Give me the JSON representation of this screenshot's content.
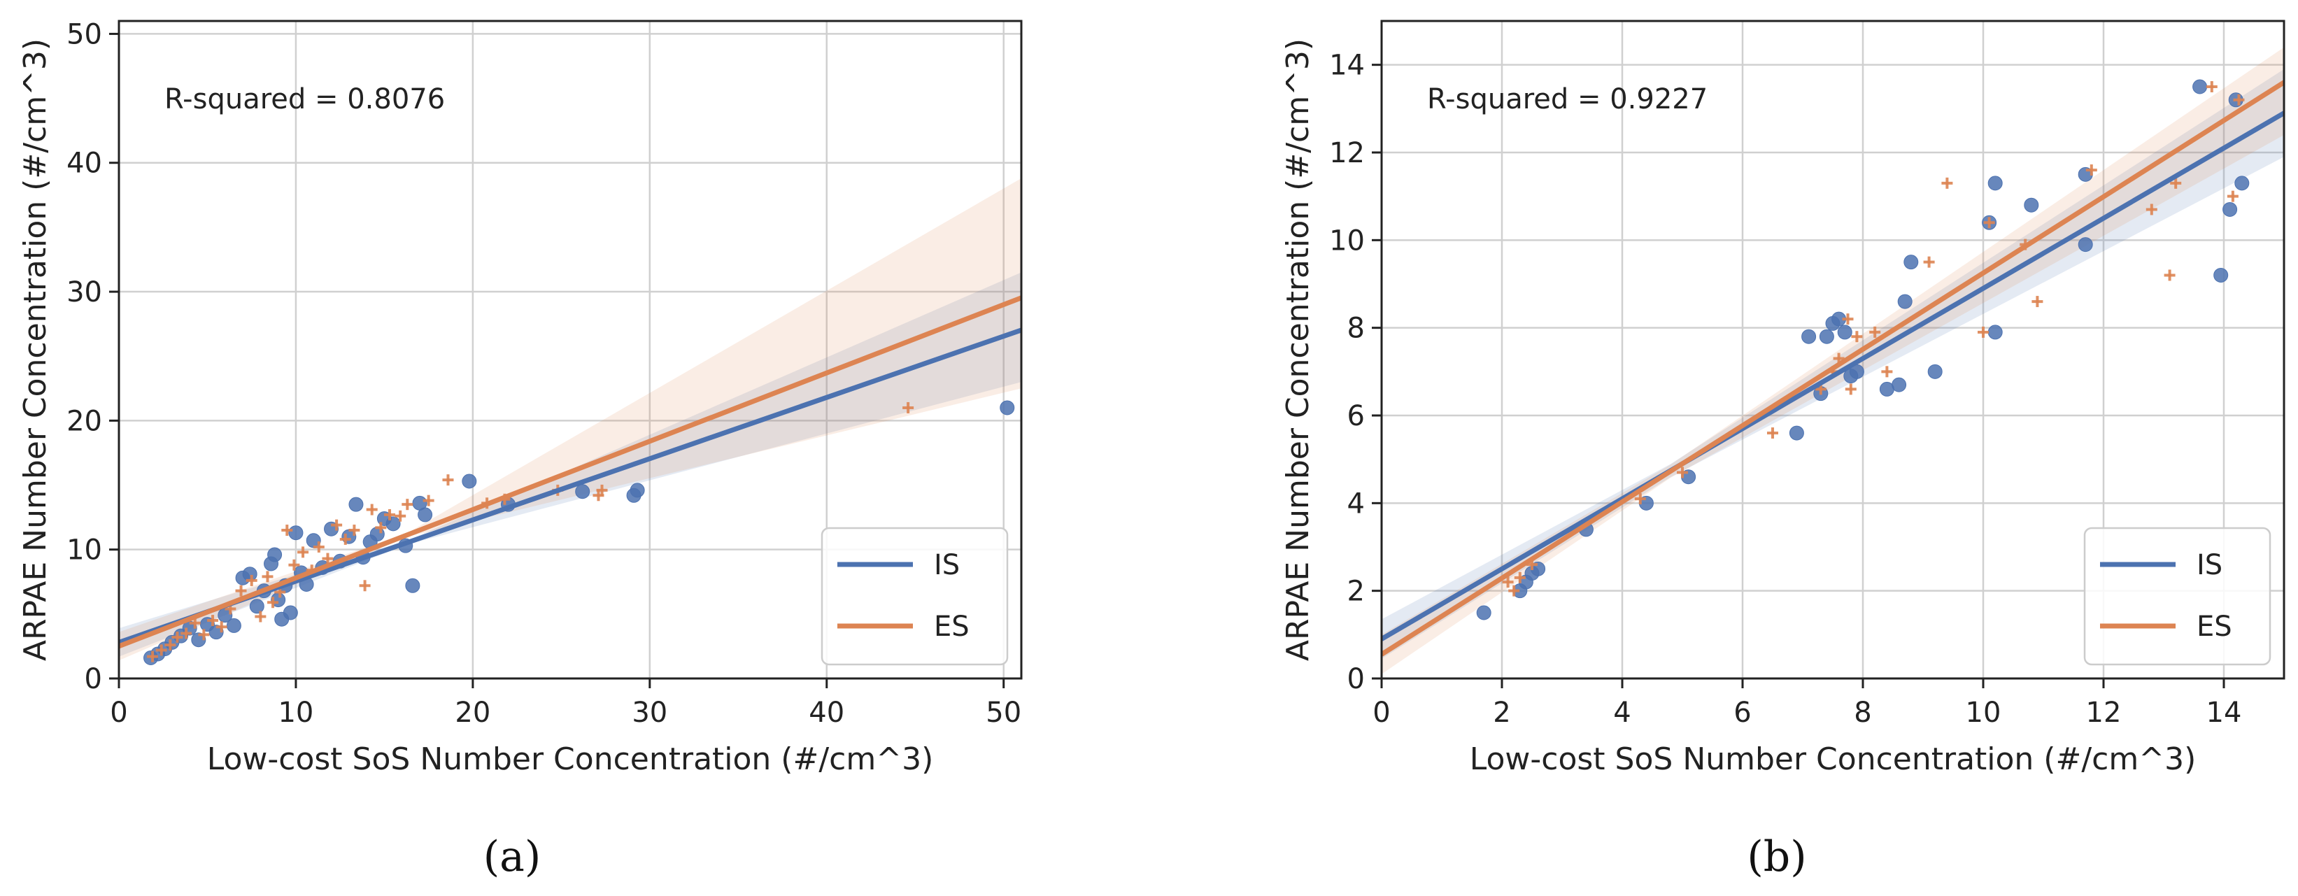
{
  "chart_data": [
    {
      "type": "scatter",
      "panel_label": "(a)",
      "annotation": "R-squared = 0.8076",
      "xlabel": "Low-cost SoS Number Concentration (#/cm^3)",
      "ylabel": "ARPAE Number Concentration (#/cm^3)",
      "xlim": [
        0,
        51
      ],
      "ylim": [
        0,
        51
      ],
      "xticks": [
        0,
        10,
        20,
        30,
        40,
        50
      ],
      "yticks": [
        0,
        10,
        20,
        30,
        40,
        50
      ],
      "xtick_labels": [
        "0",
        "10",
        "20",
        "30",
        "40",
        "50"
      ],
      "ytick_labels": [
        "0",
        "10",
        "20",
        "30",
        "40",
        "50"
      ],
      "grid": true,
      "legend_position": "bottom-right",
      "series": [
        {
          "name": "IS",
          "color": "#4c72b0",
          "marker": "circle",
          "fit": {
            "slope": 0.475,
            "intercept": 2.8,
            "ci_low_end": 23.0,
            "ci_high_end": 31.5
          },
          "points": [
            [
              1.8,
              1.6
            ],
            [
              2.2,
              1.9
            ],
            [
              2.6,
              2.3
            ],
            [
              3.0,
              2.8
            ],
            [
              3.5,
              3.3
            ],
            [
              4.0,
              3.9
            ],
            [
              4.5,
              3.0
            ],
            [
              5.0,
              4.2
            ],
            [
              5.5,
              3.6
            ],
            [
              6.0,
              4.9
            ],
            [
              6.5,
              4.1
            ],
            [
              7.0,
              7.8
            ],
            [
              7.4,
              8.1
            ],
            [
              7.8,
              5.6
            ],
            [
              8.2,
              6.8
            ],
            [
              8.6,
              8.9
            ],
            [
              8.8,
              9.6
            ],
            [
              9.0,
              6.1
            ],
            [
              9.2,
              4.6
            ],
            [
              9.4,
              7.2
            ],
            [
              9.7,
              5.1
            ],
            [
              10.0,
              11.3
            ],
            [
              10.3,
              8.2
            ],
            [
              10.6,
              7.3
            ],
            [
              11.0,
              10.7
            ],
            [
              11.5,
              8.6
            ],
            [
              12.0,
              11.6
            ],
            [
              12.5,
              9.1
            ],
            [
              13.0,
              11.0
            ],
            [
              13.4,
              13.5
            ],
            [
              13.8,
              9.4
            ],
            [
              14.2,
              10.6
            ],
            [
              14.6,
              11.2
            ],
            [
              15.0,
              12.4
            ],
            [
              15.5,
              12.0
            ],
            [
              16.2,
              10.3
            ],
            [
              16.6,
              7.2
            ],
            [
              17.0,
              13.6
            ],
            [
              17.3,
              12.7
            ],
            [
              19.8,
              15.3
            ],
            [
              22.0,
              13.5
            ],
            [
              26.2,
              14.5
            ],
            [
              29.1,
              14.2
            ],
            [
              29.3,
              14.6
            ],
            [
              50.2,
              21.0
            ]
          ]
        },
        {
          "name": "ES",
          "color": "#dd8452",
          "marker": "plus",
          "fit": {
            "slope": 0.53,
            "intercept": 2.5,
            "ci_low_end": 22.5,
            "ci_high_end": 38.8
          },
          "points": [
            [
              1.9,
              1.7
            ],
            [
              2.4,
              2.2
            ],
            [
              2.9,
              2.6
            ],
            [
              3.3,
              3.2
            ],
            [
              3.8,
              3.5
            ],
            [
              4.3,
              4.3
            ],
            [
              4.8,
              3.4
            ],
            [
              5.3,
              4.5
            ],
            [
              5.8,
              4.0
            ],
            [
              6.3,
              5.4
            ],
            [
              6.9,
              6.8
            ],
            [
              7.5,
              7.6
            ],
            [
              8.0,
              4.8
            ],
            [
              8.4,
              7.9
            ],
            [
              8.7,
              5.9
            ],
            [
              9.1,
              6.7
            ],
            [
              9.5,
              11.5
            ],
            [
              9.9,
              8.8
            ],
            [
              10.4,
              9.8
            ],
            [
              10.9,
              8.4
            ],
            [
              11.3,
              10.2
            ],
            [
              11.8,
              9.3
            ],
            [
              12.3,
              11.9
            ],
            [
              12.8,
              10.8
            ],
            [
              13.3,
              11.5
            ],
            [
              13.9,
              7.2
            ],
            [
              14.3,
              13.1
            ],
            [
              14.8,
              11.7
            ],
            [
              15.3,
              12.7
            ],
            [
              15.9,
              12.6
            ],
            [
              16.3,
              13.5
            ],
            [
              17.5,
              13.8
            ],
            [
              18.6,
              15.4
            ],
            [
              20.8,
              13.6
            ],
            [
              21.8,
              13.9
            ],
            [
              24.8,
              14.6
            ],
            [
              27.1,
              14.2
            ],
            [
              27.3,
              14.6
            ],
            [
              44.6,
              21.0
            ]
          ]
        }
      ]
    },
    {
      "type": "scatter",
      "panel_label": "(b)",
      "annotation": "R-squared = 0.9227",
      "xlabel": "Low-cost SoS Number Concentration (#/cm^3)",
      "ylabel": "ARPAE Number Concentration (#/cm^3)",
      "xlim": [
        0,
        15
      ],
      "ylim": [
        0,
        15
      ],
      "xticks": [
        0,
        2,
        4,
        6,
        8,
        10,
        12,
        14
      ],
      "yticks": [
        0,
        2,
        4,
        6,
        8,
        10,
        12,
        14
      ],
      "xtick_labels": [
        "0",
        "2",
        "4",
        "6",
        "8",
        "10",
        "12",
        "14"
      ],
      "ytick_labels": [
        "0",
        "2",
        "4",
        "6",
        "8",
        "10",
        "12",
        "14"
      ],
      "grid": true,
      "legend_position": "bottom-right",
      "series": [
        {
          "name": "IS",
          "color": "#4c72b0",
          "marker": "circle",
          "fit": {
            "slope": 0.8,
            "intercept": 0.9,
            "ci_low_end": 11.9,
            "ci_high_end": 13.9
          },
          "points": [
            [
              1.7,
              1.5
            ],
            [
              2.3,
              2.0
            ],
            [
              2.4,
              2.2
            ],
            [
              2.5,
              2.4
            ],
            [
              2.6,
              2.5
            ],
            [
              3.4,
              3.4
            ],
            [
              4.4,
              4.0
            ],
            [
              5.1,
              4.6
            ],
            [
              6.9,
              5.6
            ],
            [
              7.1,
              7.8
            ],
            [
              7.3,
              6.5
            ],
            [
              7.4,
              7.8
            ],
            [
              7.5,
              8.1
            ],
            [
              7.6,
              8.2
            ],
            [
              7.7,
              7.9
            ],
            [
              7.8,
              6.9
            ],
            [
              7.9,
              7.0
            ],
            [
              8.4,
              6.6
            ],
            [
              8.6,
              6.7
            ],
            [
              8.7,
              8.6
            ],
            [
              8.8,
              9.5
            ],
            [
              9.2,
              7.0
            ],
            [
              10.1,
              10.4
            ],
            [
              10.2,
              7.9
            ],
            [
              10.2,
              11.3
            ],
            [
              10.8,
              10.8
            ],
            [
              11.7,
              11.5
            ],
            [
              11.7,
              9.9
            ],
            [
              13.6,
              13.5
            ],
            [
              13.95,
              9.2
            ],
            [
              14.1,
              10.7
            ],
            [
              14.2,
              13.2
            ],
            [
              14.3,
              11.3
            ]
          ]
        },
        {
          "name": "ES",
          "color": "#dd8452",
          "marker": "plus",
          "fit": {
            "slope": 0.87,
            "intercept": 0.55,
            "ci_low_end": 12.4,
            "ci_high_end": 14.4
          },
          "points": [
            [
              2.1,
              2.2
            ],
            [
              2.2,
              2.0
            ],
            [
              2.3,
              2.3
            ],
            [
              2.5,
              2.6
            ],
            [
              4.3,
              4.1
            ],
            [
              5.0,
              4.7
            ],
            [
              6.5,
              5.6
            ],
            [
              7.3,
              6.6
            ],
            [
              7.5,
              7.0
            ],
            [
              7.6,
              7.3
            ],
            [
              7.75,
              8.2
            ],
            [
              7.8,
              6.6
            ],
            [
              7.9,
              7.8
            ],
            [
              8.2,
              7.9
            ],
            [
              8.4,
              7.0
            ],
            [
              9.1,
              9.5
            ],
            [
              9.4,
              11.3
            ],
            [
              10.0,
              7.9
            ],
            [
              10.1,
              10.4
            ],
            [
              10.7,
              9.9
            ],
            [
              10.9,
              8.6
            ],
            [
              11.8,
              11.6
            ],
            [
              12.8,
              10.7
            ],
            [
              13.1,
              9.2
            ],
            [
              13.2,
              11.3
            ],
            [
              13.8,
              13.5
            ],
            [
              14.15,
              11.0
            ],
            [
              14.25,
              13.2
            ]
          ]
        }
      ]
    }
  ]
}
